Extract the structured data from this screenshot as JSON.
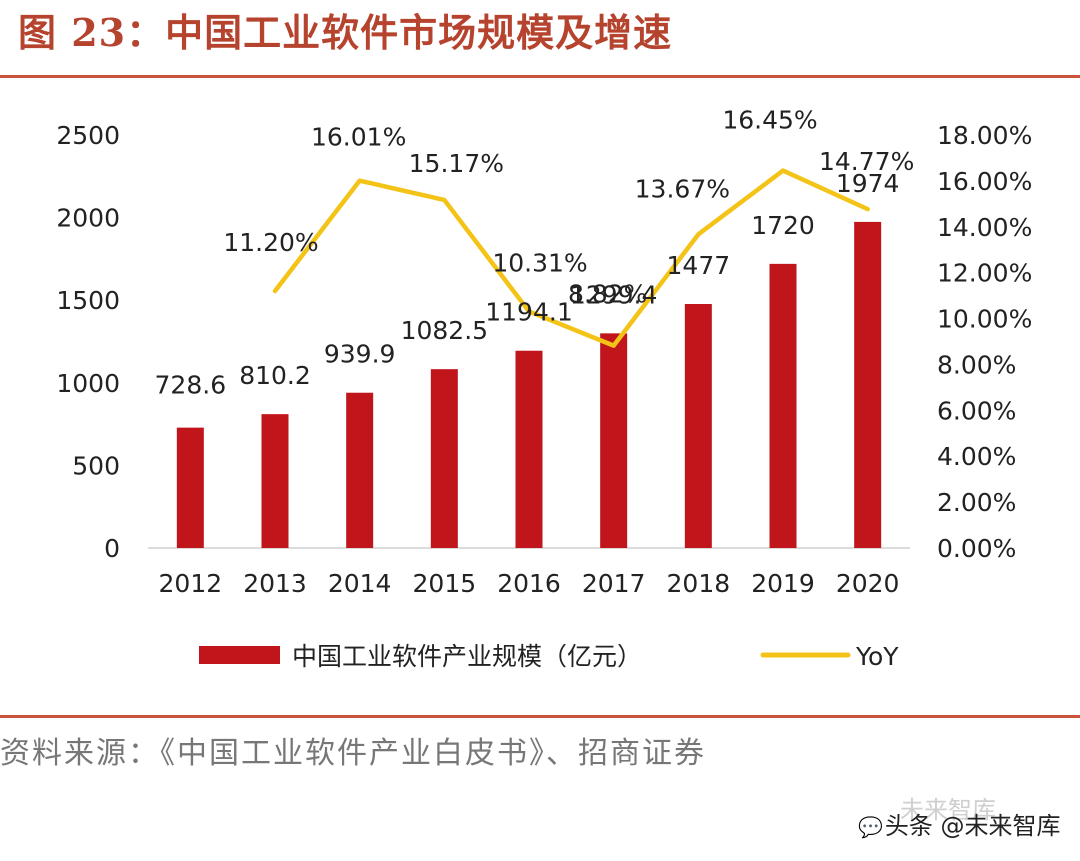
{
  "figure": {
    "title": "图 23：中国工业软件市场规模及增速",
    "source": "资料来源：《中国工业软件产业白皮书》、招商证券",
    "watermark": "头条 @未来智库",
    "watermark_ghost": "未来智库",
    "watermark_icon": "chat-bubble-icon"
  },
  "colors": {
    "bar": "#c0151b",
    "line": "#f3c317",
    "rule": "#c9533b",
    "title": "#b5432e"
  },
  "chart_data": {
    "type": "bar",
    "categories": [
      "2012",
      "2013",
      "2014",
      "2015",
      "2016",
      "2017",
      "2018",
      "2019",
      "2020"
    ],
    "series": [
      {
        "name": "中国工业软件产业规模（亿元）",
        "type": "bar",
        "axis": "left",
        "values": [
          728.6,
          810.2,
          939.9,
          1082.5,
          1194.1,
          1299.4,
          1477,
          1720,
          1974
        ],
        "labels": [
          "728.6",
          "810.2",
          "939.9",
          "1082.5",
          "1194.1",
          "1299.4",
          "1477",
          "1720",
          "1974"
        ]
      },
      {
        "name": "YoY",
        "type": "line",
        "axis": "right",
        "values": [
          null,
          11.2,
          16.01,
          15.17,
          10.31,
          8.82,
          13.67,
          16.45,
          14.77
        ],
        "labels": [
          "",
          "11.20%",
          "16.01%",
          "15.17%",
          "10.31%",
          "8.82%",
          "13.67%",
          "16.45%",
          "14.77%"
        ]
      }
    ],
    "y_left": {
      "ylim": [
        0,
        2500
      ],
      "ticks": [
        "0",
        "500",
        "1000",
        "1500",
        "2000",
        "2500"
      ]
    },
    "y_right": {
      "ylim": [
        0,
        18
      ],
      "ticks": [
        "0.00%",
        "2.00%",
        "4.00%",
        "6.00%",
        "8.00%",
        "10.00%",
        "12.00%",
        "14.00%",
        "16.00%",
        "18.00%"
      ]
    },
    "grid": false,
    "legend": "bottom"
  }
}
